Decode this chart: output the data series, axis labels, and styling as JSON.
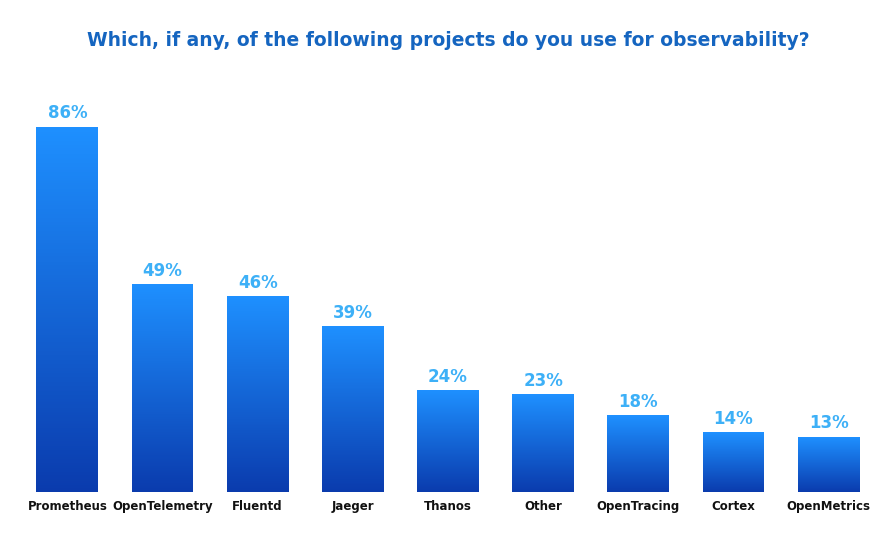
{
  "categories": [
    "Prometheus",
    "OpenTelemetry",
    "Fluentd",
    "Jaeger",
    "Thanos",
    "Other",
    "OpenTracing",
    "Cortex",
    "OpenMetrics"
  ],
  "values": [
    86,
    49,
    46,
    39,
    24,
    23,
    18,
    14,
    13
  ],
  "bar_color_top": "#1E90FF",
  "bar_color_bottom": "#0A3BAD",
  "title": "Which, if any, of the following projects do you use for observability?",
  "title_color": "#1565C0",
  "title_fontsize": 13.5,
  "label_color": "#3DB0F7",
  "label_fontsize": 12,
  "xlabel_fontsize": 8.5,
  "xlabel_color": "#111111",
  "background_color": "#ffffff",
  "ylim": [
    0,
    100
  ],
  "bar_width": 0.65
}
